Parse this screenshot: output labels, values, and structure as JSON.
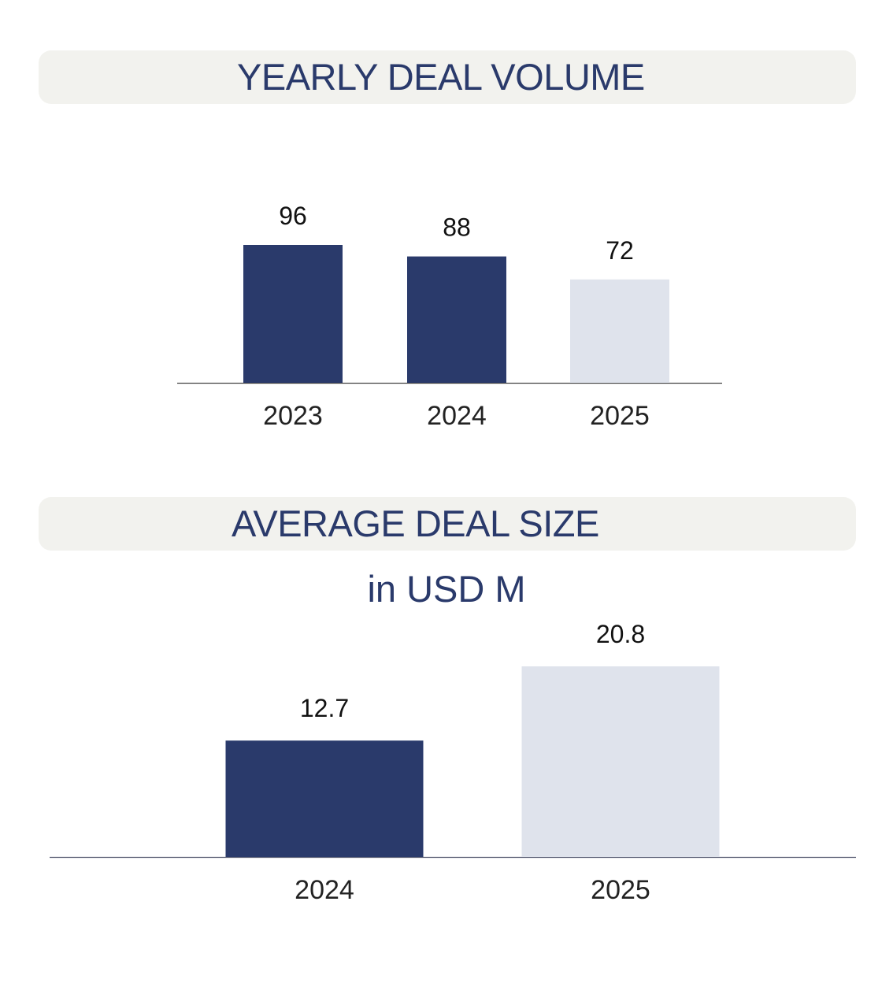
{
  "palette": {
    "primary": "#2a3a6b",
    "secondary": "#dfe3ec",
    "band": "#f2f2ee",
    "axis": "#444444"
  },
  "chart_data": [
    {
      "type": "bar",
      "title": "YEARLY DEAL VOLUME",
      "subtitle": "",
      "categories": [
        "2023",
        "2024",
        "2025"
      ],
      "values": [
        96,
        88,
        72
      ],
      "value_labels": [
        "96",
        "88",
        "72"
      ],
      "bar_colors": [
        "#2a3a6b",
        "#2a3a6b",
        "#dfe3ec"
      ],
      "xlabel": "",
      "ylabel": "",
      "ylim": [
        0,
        96
      ],
      "grid": false,
      "legend": "none"
    },
    {
      "type": "bar",
      "title": "AVERAGE DEAL SIZE",
      "subtitle": "in USD M",
      "categories": [
        "2024",
        "2025"
      ],
      "values": [
        12.7,
        20.8
      ],
      "value_labels": [
        "12.7",
        "20.8"
      ],
      "bar_colors": [
        "#2a3a6b",
        "#dfe3ec"
      ],
      "xlabel": "",
      "ylabel": "",
      "ylim": [
        0,
        20.8
      ],
      "grid": false,
      "legend": "none"
    }
  ]
}
